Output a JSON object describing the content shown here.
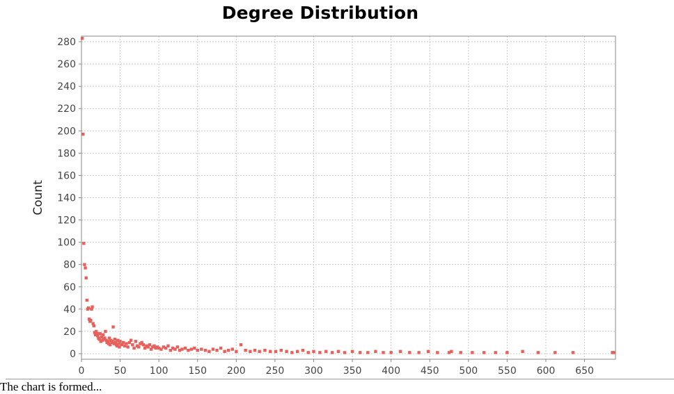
{
  "chart_data": {
    "type": "scatter",
    "title": "Degree Distribution",
    "xlabel": "",
    "ylabel": "Count",
    "xlim": [
      0,
      690
    ],
    "ylim": [
      -5,
      285
    ],
    "xticks": [
      0,
      50,
      100,
      150,
      200,
      250,
      300,
      350,
      400,
      450,
      500,
      550,
      600,
      650
    ],
    "yticks": [
      0,
      20,
      40,
      60,
      80,
      100,
      120,
      140,
      160,
      180,
      200,
      220,
      240,
      260,
      280
    ],
    "grid": true,
    "legend": "none",
    "point_color": "#e8605c",
    "series": [
      {
        "x": [
          1,
          2,
          3,
          4,
          5,
          6,
          7,
          8,
          9,
          10,
          11,
          12,
          13,
          14,
          15,
          16,
          17,
          18,
          19,
          20,
          21,
          22,
          23,
          24,
          25,
          26,
          27,
          28,
          29,
          30,
          31,
          32,
          33,
          34,
          35,
          36,
          37,
          38,
          39,
          40,
          41,
          42,
          43,
          44,
          45,
          46,
          47,
          48,
          49,
          50,
          52,
          54,
          56,
          58,
          60,
          62,
          64,
          66,
          68,
          70,
          72,
          74,
          76,
          78,
          80,
          82,
          84,
          86,
          88,
          90,
          92,
          94,
          96,
          98,
          100,
          103,
          106,
          109,
          112,
          115,
          118,
          121,
          124,
          127,
          130,
          134,
          138,
          142,
          146,
          150,
          155,
          160,
          165,
          170,
          175,
          180,
          185,
          190,
          195,
          200,
          206,
          212,
          218,
          224,
          230,
          237,
          244,
          251,
          258,
          265,
          272,
          279,
          286,
          293,
          300,
          308,
          316,
          324,
          332,
          340,
          350,
          360,
          370,
          380,
          390,
          400,
          412,
          424,
          436,
          448,
          460,
          475,
          478,
          490,
          505,
          520,
          535,
          550,
          570,
          590,
          612,
          635,
          686,
          688
        ],
        "y": [
          283,
          197,
          99,
          80,
          77,
          68,
          48,
          40,
          41,
          31,
          29,
          30,
          40,
          42,
          27,
          25,
          19,
          17,
          20,
          18,
          16,
          14,
          13,
          18,
          11,
          15,
          12,
          17,
          13,
          14,
          20,
          12,
          10,
          11,
          9,
          14,
          8,
          12,
          10,
          11,
          24,
          9,
          13,
          10,
          8,
          7,
          12,
          9,
          6,
          11,
          8,
          10,
          7,
          9,
          6,
          10,
          12,
          8,
          5,
          11,
          7,
          6,
          9,
          10,
          8,
          5,
          7,
          6,
          8,
          4,
          6,
          7,
          5,
          6,
          5,
          4,
          6,
          5,
          7,
          3,
          5,
          4,
          6,
          3,
          4,
          5,
          3,
          4,
          5,
          3,
          4,
          3,
          2,
          4,
          3,
          5,
          2,
          3,
          4,
          2,
          8,
          3,
          2,
          3,
          2,
          3,
          2,
          2,
          3,
          2,
          1,
          2,
          3,
          1,
          2,
          1,
          2,
          1,
          2,
          1,
          2,
          1,
          1,
          2,
          1,
          1,
          2,
          1,
          1,
          2,
          1,
          1,
          2,
          1,
          1,
          1,
          1,
          1,
          2,
          1,
          1,
          1,
          1,
          1
        ]
      }
    ]
  },
  "footer": {
    "text": "The chart is formed..."
  }
}
